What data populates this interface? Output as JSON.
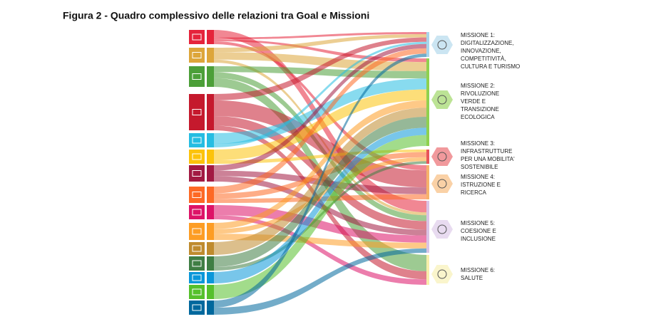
{
  "title": "Figura 2 - Quadro complessivo delle relazioni tra Goal e Missioni",
  "missions": [
    {
      "lines": [
        "MISSIONE 1:",
        "DIGITALIZZAZIONE,",
        "INNOVAZIONE,",
        "COMPETITIVITÀ,",
        "CULTURA E TURISMO"
      ]
    },
    {
      "lines": [
        "MISSIONE 2:",
        "RIVOLUZIONE",
        "VERDE E",
        "TRANSIZIONE",
        "ECOLOGICA"
      ]
    },
    {
      "lines": [
        "MISSIONE 3:",
        "INFRASTRUTTURE",
        "PER UNA MOBILITA'",
        "SOSTENIBILE"
      ]
    },
    {
      "lines": [
        "MISSIONE 4:",
        "ISTRUZIONE E",
        "RICERCA"
      ]
    },
    {
      "lines": [
        "MISSIONE 5:",
        "COESIONE E",
        "INCLUSIONE"
      ]
    },
    {
      "lines": [
        "MISSIONE 6:",
        "SALUTE"
      ]
    }
  ]
}
